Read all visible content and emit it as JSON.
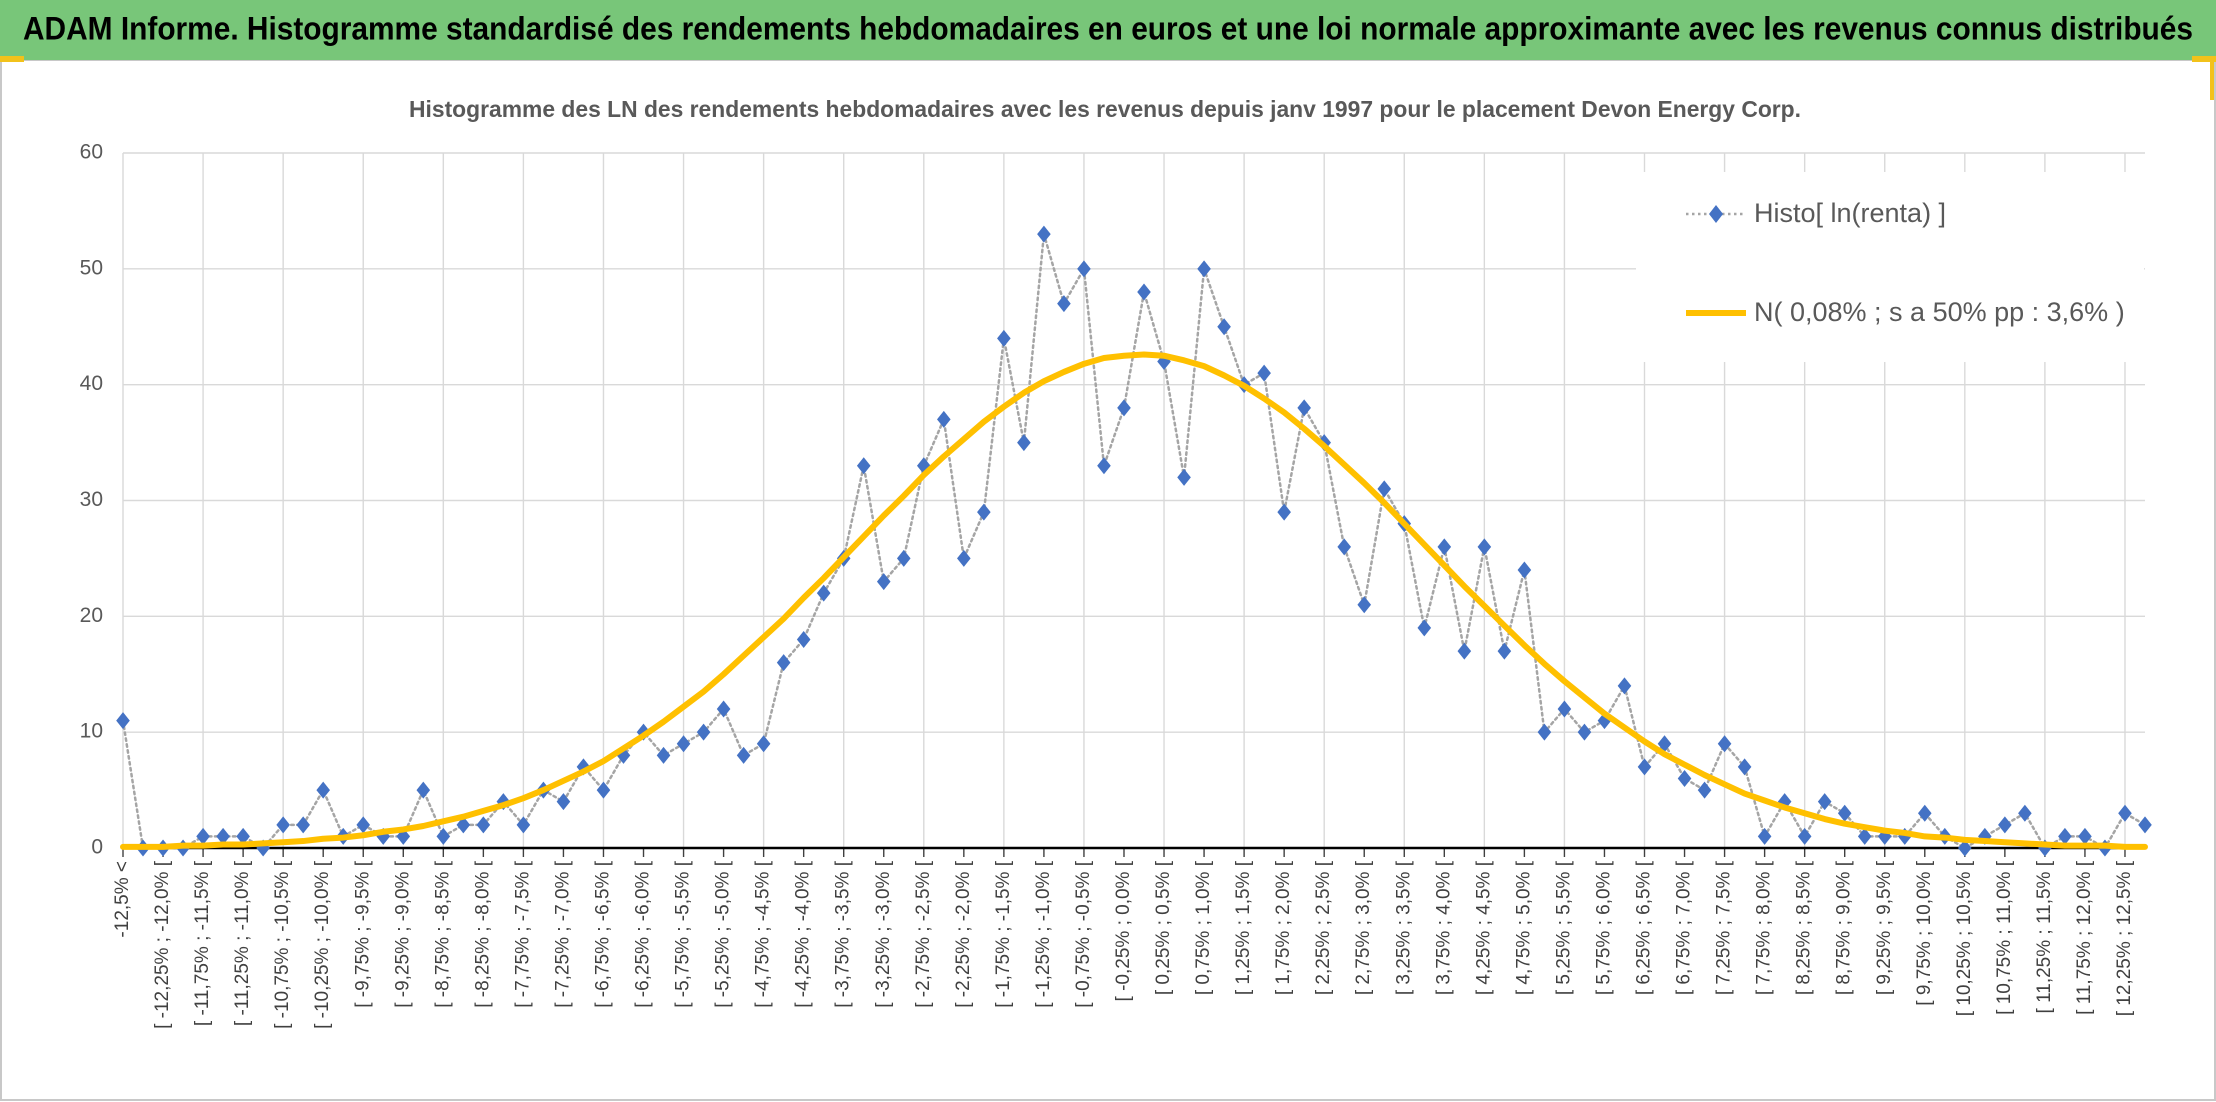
{
  "header": {
    "title": "ADAM Informe. Histogramme standardisé des rendements hebdomadaires en euros et une loi normale approximante avec les revenus connus distribués"
  },
  "chart_data": {
    "type": "line",
    "title": "Histogramme des LN des rendements hebdomadaires avec les revenus depuis janv 1997 pour le placement Devon Energy Corp.",
    "categories": [
      "-12,5% <",
      null,
      "[ -12,25% ; -12,0% [",
      null,
      "[ -11,75% ; -11,5% [",
      null,
      "[ -11,25% ; -11,0% [",
      null,
      "[ -10,75% ; -10,5% [",
      null,
      "[ -10,25% ; -10,0% [",
      null,
      "[ -9,75% ; -9,5% [",
      null,
      "[ -9,25% ; -9,0% [",
      null,
      "[ -8,75% ; -8,5% [",
      null,
      "[ -8,25% ; -8,0% [",
      null,
      "[ -7,75% ; -7,5% [",
      null,
      "[ -7,25% ; -7,0% [",
      null,
      "[ -6,75% ; -6,5% [",
      null,
      "[ -6,25% ; -6,0% [",
      null,
      "[ -5,75% ; -5,5% [",
      null,
      "[ -5,25% ; -5,0% [",
      null,
      "[ -4,75% ; -4,5% [",
      null,
      "[ -4,25% ; -4,0% [",
      null,
      "[ -3,75% ; -3,5% [",
      null,
      "[ -3,25% ; -3,0% [",
      null,
      "[ -2,75% ; -2,5% [",
      null,
      "[ -2,25% ; -2,0% [",
      null,
      "[ -1,75% ; -1,5% [",
      null,
      "[ -1,25% ; -1,0% [",
      null,
      "[ -0,75% ; -0,5% [",
      null,
      "[ -0,25% ; 0,0% [",
      null,
      "[ 0,25% ; 0,5% [",
      null,
      "[ 0,75% ; 1,0% [",
      null,
      "[ 1,25% ; 1,5% [",
      null,
      "[ 1,75% ; 2,0% [",
      null,
      "[ 2,25% ; 2,5% [",
      null,
      "[ 2,75% ; 3,0% [",
      null,
      "[ 3,25% ; 3,5% [",
      null,
      "[ 3,75% ; 4,0% [",
      null,
      "[ 4,25% ; 4,5% [",
      null,
      "[ 4,75% ; 5,0% [",
      null,
      "[ 5,25% ; 5,5% [",
      null,
      "[ 5,75% ; 6,0% [",
      null,
      "[ 6,25% ; 6,5% [",
      null,
      "[ 6,75% ; 7,0% [",
      null,
      "[ 7,25% ; 7,5% [",
      null,
      "[ 7,75% ; 8,0% [",
      null,
      "[ 8,25% ; 8,5% [",
      null,
      "[ 8,75% ; 9,0% [",
      null,
      "[ 9,25% ; 9,5% [",
      null,
      "[ 9,75% ; 10,0% [",
      null,
      "[ 10,25% ; 10,5% [",
      null,
      "[ 10,75% ; 11,0% [",
      null,
      "[ 11,25% ; 11,5% [",
      null,
      "[ 11,75% ; 12,0% [",
      null,
      "[ 12,25% ; 12,5% [",
      null
    ],
    "series": [
      {
        "name": "Histo[ ln(renta) ]",
        "color": "#4472c4",
        "line_color": "#a5a5a5",
        "line_style": "dotted",
        "marker": "diamond",
        "values": [
          11,
          0,
          0,
          0,
          1,
          1,
          1,
          0,
          2,
          2,
          5,
          1,
          2,
          1,
          1,
          5,
          1,
          2,
          2,
          4,
          2,
          5,
          4,
          7,
          5,
          8,
          10,
          8,
          9,
          10,
          12,
          8,
          9,
          16,
          18,
          22,
          25,
          33,
          23,
          25,
          33,
          37,
          25,
          29,
          44,
          35,
          53,
          47,
          50,
          33,
          38,
          48,
          42,
          32,
          50,
          45,
          40,
          41,
          29,
          38,
          35,
          26,
          21,
          31,
          28,
          19,
          26,
          17,
          26,
          17,
          24,
          10,
          12,
          10,
          11,
          14,
          7,
          9,
          6,
          5,
          9,
          7,
          1,
          4,
          1,
          4,
          3,
          1,
          1,
          1,
          3,
          1,
          0,
          1,
          2,
          3,
          0,
          1,
          1,
          0,
          3,
          2
        ]
      },
      {
        "name": "N( 0,08% ; s a 50% pp : 3,6% )",
        "color": "#ffc000",
        "line_style": "solid",
        "values": [
          0.1,
          0.1,
          0.1,
          0.2,
          0.2,
          0.3,
          0.3,
          0.4,
          0.5,
          0.6,
          0.8,
          0.9,
          1.1,
          1.4,
          1.6,
          1.9,
          2.3,
          2.7,
          3.2,
          3.7,
          4.3,
          5.0,
          5.8,
          6.6,
          7.5,
          8.6,
          9.7,
          10.9,
          12.2,
          13.5,
          15.0,
          16.6,
          18.2,
          19.8,
          21.6,
          23.3,
          25.1,
          26.9,
          28.7,
          30.4,
          32.2,
          33.8,
          35.3,
          36.8,
          38.1,
          39.3,
          40.3,
          41.1,
          41.8,
          42.3,
          42.5,
          42.6,
          42.5,
          42.1,
          41.6,
          40.8,
          39.9,
          38.8,
          37.6,
          36.2,
          34.7,
          33.1,
          31.5,
          29.8,
          28.0,
          26.2,
          24.4,
          22.6,
          20.9,
          19.2,
          17.5,
          15.9,
          14.4,
          13.0,
          11.6,
          10.4,
          9.2,
          8.1,
          7.2,
          6.3,
          5.5,
          4.7,
          4.1,
          3.5,
          3.0,
          2.5,
          2.1,
          1.8,
          1.5,
          1.3,
          1.0,
          0.9,
          0.7,
          0.6,
          0.5,
          0.4,
          0.3,
          0.2,
          0.2,
          0.2,
          0.1,
          0.1
        ]
      }
    ],
    "ylim": [
      0,
      60
    ],
    "yticks": [
      0,
      10,
      20,
      30,
      40,
      50,
      60
    ],
    "grid": true,
    "legend": "top-right"
  }
}
